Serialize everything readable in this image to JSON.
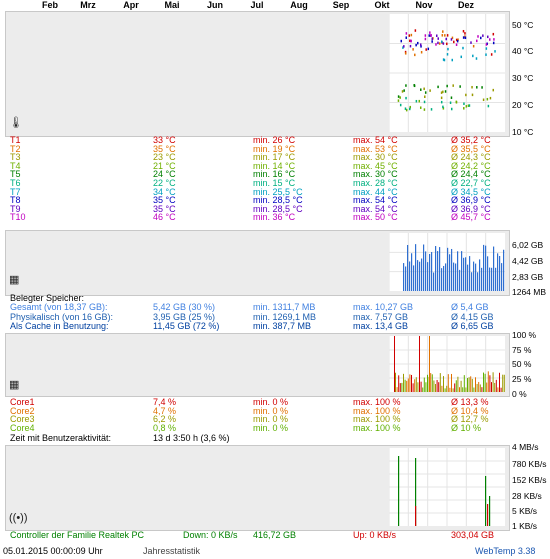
{
  "months": [
    "Feb",
    "Mrz",
    "Apr",
    "Mai",
    "Jun",
    "Jul",
    "Aug",
    "Sep",
    "Okt",
    "Nov",
    "Dez"
  ],
  "temp": {
    "axis": [
      "50 °C",
      "40 °C",
      "30 °C",
      "20 °C",
      "10 °C"
    ],
    "rows": [
      {
        "name": "T1",
        "cur": "33 °C",
        "min": "min. 26 °C",
        "max": "max. 54 °C",
        "avg": "Ø 35,2 °C",
        "color": "#d00000"
      },
      {
        "name": "T2",
        "cur": "35 °C",
        "min": "min. 19 °C",
        "max": "max. 53 °C",
        "avg": "Ø 35,5 °C",
        "color": "#e07000"
      },
      {
        "name": "T3",
        "cur": "23 °C",
        "min": "min. 17 °C",
        "max": "max. 30 °C",
        "avg": "Ø 24,3 °C",
        "color": "#9a9a00"
      },
      {
        "name": "T4",
        "cur": "21 °C",
        "min": "min. 14 °C",
        "max": "max. 45 °C",
        "avg": "Ø 24,2 °C",
        "color": "#70b000"
      },
      {
        "name": "T5",
        "cur": "24 °C",
        "min": "min. 16 °C",
        "max": "max. 30 °C",
        "avg": "Ø 24,4 °C",
        "color": "#008000"
      },
      {
        "name": "T6",
        "cur": "22 °C",
        "min": "min. 15 °C",
        "max": "max. 28 °C",
        "avg": "Ø 22,7 °C",
        "color": "#00b080"
      },
      {
        "name": "T7",
        "cur": "34 °C",
        "min": "min. 25,5 °C",
        "max": "max. 44 °C",
        "avg": "Ø 34,5 °C",
        "color": "#00a0c0"
      },
      {
        "name": "T8",
        "cur": "35 °C",
        "min": "min. 28,5 °C",
        "max": "max. 54 °C",
        "avg": "Ø 36,9 °C",
        "color": "#0000c0"
      },
      {
        "name": "T9",
        "cur": "35 °C",
        "min": "min. 28,5 °C",
        "max": "max. 54 °C",
        "avg": "Ø 36,9 °C",
        "color": "#6000c0"
      },
      {
        "name": "T10",
        "cur": "46 °C",
        "min": "min. 36 °C",
        "max": "max. 50 °C",
        "avg": "Ø 45,7 °C",
        "color": "#c000c0"
      }
    ]
  },
  "memory": {
    "axis": [
      "6,02 GB",
      "4,42 GB",
      "2,83 GB",
      "1264 MB"
    ],
    "header": "Belegter Speicher:",
    "rows": [
      {
        "name": "Gesamt (von 18,37 GB):",
        "cur": "5,42 GB (30 %)",
        "min": "min. 1311,7 MB",
        "max": "max. 10,27 GB",
        "avg": "Ø 5,4 GB",
        "color": "#4080e0"
      },
      {
        "name": "Physikalisch (von 16 GB):",
        "cur": "3,95 GB (25 %)",
        "min": "min. 1269,1 MB",
        "max": "max. 7,57 GB",
        "avg": "Ø 4,15 GB",
        "color": "#2060b0"
      },
      {
        "name": "Als Cache in Benutzung:",
        "cur": "11,45 GB (72 %)",
        "min": "min. 387,7 MB",
        "max": "max. 13,4 GB",
        "avg": "Ø 6,65 GB",
        "color": "#0040a0"
      }
    ]
  },
  "cpu": {
    "axis": [
      "100 %",
      "75 %",
      "50 %",
      "25 %",
      "0 %"
    ],
    "rows": [
      {
        "name": "Core1",
        "cur": "7,4 %",
        "min": "min. 0 %",
        "max": "max. 100 %",
        "avg": "Ø 13,3 %",
        "color": "#d00000"
      },
      {
        "name": "Core2",
        "cur": "4,7 %",
        "min": "min. 0 %",
        "max": "max. 100 %",
        "avg": "Ø 10,4 %",
        "color": "#e07000"
      },
      {
        "name": "Core3",
        "cur": "6,2 %",
        "min": "min. 0 %",
        "max": "max. 100 %",
        "avg": "Ø 12,7 %",
        "color": "#9a9a00"
      },
      {
        "name": "Core4",
        "cur": "0,8 %",
        "min": "min. 0 %",
        "max": "max. 100 %",
        "avg": "Ø 10 %",
        "color": "#60b000"
      }
    ],
    "activity_label": "Zeit mit Benutzeraktivität:",
    "activity_value": "13 d 3:50 h (3,6 %)"
  },
  "net": {
    "axis": [
      "4 MB/s",
      "780 KB/s",
      "152 KB/s",
      "28 KB/s",
      "5 KB/s",
      "1 KB/s"
    ],
    "controller": "Controller der Familie Realtek PC",
    "down": "Down: 0 KB/s",
    "down_total": "416,72 GB",
    "up": "Up: 0 KB/s",
    "up_total": "303,04 GB"
  },
  "footer": {
    "datetime": "05.01.2015 00:00:09 Uhr",
    "period": "Jahresstatistik",
    "version": "WebTemp 3.38"
  }
}
